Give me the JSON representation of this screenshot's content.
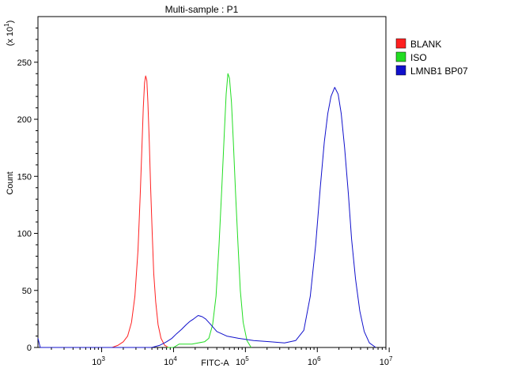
{
  "chart_data": {
    "type": "line",
    "title": "Multi-sample : P1",
    "xlabel": "FITC-A",
    "ylabel": "Count",
    "y_multiplier_label": "(x 10",
    "y_multiplier_exp": "1",
    "x_scale": "log",
    "xlim": [
      130,
      9000000
    ],
    "ylim": [
      0,
      290
    ],
    "grid": false,
    "legend_position": "top-right",
    "x_ticks": [
      {
        "value": 1000,
        "base": "10",
        "exp": "3"
      },
      {
        "value": 10000,
        "base": "10",
        "exp": "4"
      },
      {
        "value": 100000,
        "base": "10",
        "exp": "5"
      },
      {
        "value": 1000000,
        "base": "10",
        "exp": "6"
      },
      {
        "value": 10000000,
        "base": "10",
        "exp": "7"
      }
    ],
    "y_ticks": [
      0,
      50,
      100,
      150,
      200,
      250
    ],
    "series": [
      {
        "name": "BLANK",
        "color": "#ff2020",
        "points": [
          [
            1400,
            0
          ],
          [
            1700,
            2
          ],
          [
            2000,
            5
          ],
          [
            2300,
            10
          ],
          [
            2600,
            22
          ],
          [
            2900,
            45
          ],
          [
            3200,
            85
          ],
          [
            3450,
            135
          ],
          [
            3650,
            180
          ],
          [
            3800,
            210
          ],
          [
            3950,
            232
          ],
          [
            4100,
            238
          ],
          [
            4250,
            234
          ],
          [
            4400,
            215
          ],
          [
            4600,
            180
          ],
          [
            4800,
            140
          ],
          [
            5050,
            100
          ],
          [
            5300,
            65
          ],
          [
            5650,
            40
          ],
          [
            6100,
            20
          ],
          [
            6700,
            8
          ],
          [
            7500,
            2
          ],
          [
            8500,
            0
          ]
        ]
      },
      {
        "name": "ISO",
        "color": "#22dd22",
        "points": [
          [
            8000,
            0
          ],
          [
            10000,
            0
          ],
          [
            12000,
            3
          ],
          [
            15000,
            3
          ],
          [
            18000,
            3
          ],
          [
            22000,
            4
          ],
          [
            27000,
            5
          ],
          [
            31000,
            8
          ],
          [
            35000,
            20
          ],
          [
            39000,
            45
          ],
          [
            43000,
            90
          ],
          [
            47000,
            140
          ],
          [
            51000,
            190
          ],
          [
            54000,
            222
          ],
          [
            57000,
            240
          ],
          [
            60000,
            236
          ],
          [
            64000,
            215
          ],
          [
            68000,
            180
          ],
          [
            73000,
            135
          ],
          [
            79000,
            90
          ],
          [
            85000,
            50
          ],
          [
            93000,
            22
          ],
          [
            105000,
            6
          ],
          [
            120000,
            0
          ]
        ]
      },
      {
        "name": "LMNB1 BP07",
        "color": "#1010cc",
        "points": [
          [
            130,
            8
          ],
          [
            140,
            0
          ],
          [
            5000,
            0
          ],
          [
            6500,
            2
          ],
          [
            8000,
            5
          ],
          [
            9500,
            8
          ],
          [
            11000,
            12
          ],
          [
            13000,
            16
          ],
          [
            15000,
            20
          ],
          [
            17000,
            23
          ],
          [
            19000,
            25
          ],
          [
            22000,
            28
          ],
          [
            25000,
            27
          ],
          [
            28000,
            25
          ],
          [
            33000,
            20
          ],
          [
            40000,
            14
          ],
          [
            55000,
            10
          ],
          [
            80000,
            8
          ],
          [
            130000,
            6
          ],
          [
            220000,
            5
          ],
          [
            350000,
            4
          ],
          [
            500000,
            6
          ],
          [
            650000,
            15
          ],
          [
            800000,
            45
          ],
          [
            950000,
            90
          ],
          [
            1100000,
            140
          ],
          [
            1250000,
            180
          ],
          [
            1400000,
            205
          ],
          [
            1550000,
            220
          ],
          [
            1750000,
            228
          ],
          [
            1950000,
            222
          ],
          [
            2150000,
            205
          ],
          [
            2400000,
            175
          ],
          [
            2700000,
            135
          ],
          [
            3000000,
            95
          ],
          [
            3400000,
            60
          ],
          [
            3900000,
            32
          ],
          [
            4500000,
            14
          ],
          [
            5300000,
            4
          ],
          [
            6500000,
            0
          ]
        ]
      }
    ]
  }
}
